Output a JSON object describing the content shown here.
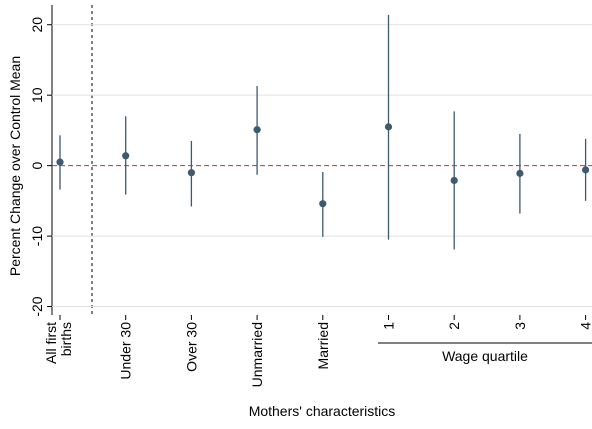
{
  "chart_data": {
    "type": "coefplot",
    "y_label": "Percent Change over Control Mean",
    "x_label": "Mothers' characteristics",
    "group_label": "Wage quartile",
    "categories": [
      "All first\nbirths",
      "Under 30",
      "Over 30",
      "Unmarried",
      "Married",
      "1",
      "2",
      "3",
      "4"
    ],
    "values": [
      0.5,
      1.4,
      -1.0,
      5.1,
      -5.4,
      5.5,
      -2.1,
      -1.1,
      -0.6
    ],
    "lower": [
      -3.4,
      -4.1,
      -5.8,
      -1.3,
      -10.1,
      -10.5,
      -11.9,
      -6.8,
      -5.0
    ],
    "upper": [
      4.3,
      7.0,
      3.5,
      11.3,
      -0.9,
      21.4,
      7.7,
      4.5,
      3.8
    ],
    "color": "#3e5a6e",
    "ylim": [
      -21.2,
      22.8
    ],
    "yticks": [
      -20,
      -10,
      0,
      10,
      20
    ],
    "grid": true,
    "reference_line": 0,
    "reference_color": "#c8304a"
  }
}
